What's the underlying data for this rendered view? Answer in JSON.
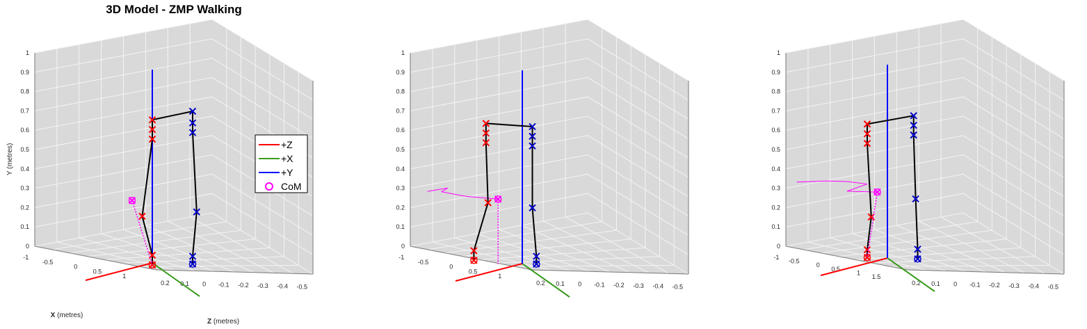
{
  "title": "3D Model - ZMP Walking",
  "axis_labels": {
    "y": "Y (metres)",
    "x_bold": "X",
    "x_rest": " (metres)",
    "z_bold": "Z",
    "z_rest": " (metres)"
  },
  "colors": {
    "pane": "#d9d9d9",
    "grid": "#f4f4f4",
    "edge": "#777777",
    "plusZ": "#ff0000",
    "plusX": "#3a9a1c",
    "plusY": "#0000ff",
    "right_leg": "#ff0000",
    "left_leg": "#0000cc",
    "com": "#ff00ff",
    "link": "#000000"
  },
  "legend": {
    "items": [
      {
        "label": "+Z",
        "kind": "line",
        "color": "#ff0000"
      },
      {
        "label": "+X",
        "kind": "line",
        "color": "#3a9a1c"
      },
      {
        "label": "+Y",
        "kind": "line",
        "color": "#0000ff"
      },
      {
        "label": "CoM",
        "kind": "circle",
        "color": "#ff00ff"
      }
    ]
  },
  "chart_data": [
    {
      "type": "scatter",
      "view": "3d",
      "panel": 1,
      "ylim": [
        0,
        1
      ],
      "z_ticks": [
        "0.2",
        "0.1",
        "0",
        "-0.1",
        "-0.2",
        "-0.3",
        "-0.4",
        "-0.5"
      ],
      "x_ticks": [
        "-1",
        "-0.5",
        "0",
        "0.5",
        "1"
      ],
      "y_ticks": [
        "0",
        "0.1",
        "0.2",
        "0.3",
        "0.4",
        "0.5",
        "0.6",
        "0.7",
        "0.8",
        "0.9",
        "1"
      ],
      "right_leg": [
        [
          0,
          0.74
        ],
        [
          0,
          0.69
        ],
        [
          0,
          0.64
        ],
        [
          0.05,
          0.24
        ],
        [
          0,
          0.04
        ],
        [
          0,
          -0.01
        ]
      ],
      "left_leg": [
        [
          -0.2,
          0.79
        ],
        [
          -0.2,
          0.73
        ],
        [
          -0.2,
          0.68
        ],
        [
          -0.22,
          0.27
        ],
        [
          -0.2,
          0.04
        ],
        [
          -0.2,
          0.0
        ]
      ],
      "com": [
        0.1,
        0.32
      ],
      "com_trail": [],
      "legend": true
    },
    {
      "type": "scatter",
      "view": "3d",
      "panel": 2,
      "ylim": [
        0,
        1
      ],
      "z_ticks": [
        "0.2",
        "0.1",
        "0",
        "-0.1",
        "-0.2",
        "-0.3",
        "-0.4",
        "-0.5"
      ],
      "x_ticks": [
        "-1",
        "-0.5",
        "0",
        "0.5",
        "1"
      ],
      "y_ticks": [
        "0",
        "0.1",
        "0.2",
        "0.3",
        "0.4",
        "0.5",
        "0.6",
        "0.7",
        "0.8",
        "0.9",
        "1"
      ],
      "right_leg": [
        [
          0.18,
          0.72
        ],
        [
          0.18,
          0.67
        ],
        [
          0.18,
          0.62
        ],
        [
          0.17,
          0.31
        ],
        [
          0.24,
          0.06
        ],
        [
          0.24,
          0.01
        ]
      ],
      "left_leg": [
        [
          -0.05,
          0.71
        ],
        [
          -0.05,
          0.66
        ],
        [
          -0.05,
          0.61
        ],
        [
          -0.05,
          0.29
        ],
        [
          -0.07,
          0.04
        ],
        [
          -0.07,
          0.0
        ]
      ],
      "com": [
        0.12,
        0.33
      ],
      "com_trail": [
        [
          0.47,
          0.36
        ],
        [
          0.42,
          0.37
        ],
        [
          0.37,
          0.38
        ],
        [
          0.4,
          0.36
        ],
        [
          0.28,
          0.34
        ],
        [
          0.12,
          0.33
        ]
      ],
      "legend": false
    },
    {
      "type": "scatter",
      "view": "3d",
      "panel": 3,
      "ylim": [
        0,
        1
      ],
      "z_ticks": [
        "0.2",
        "0.1",
        "0",
        "-0.1",
        "-0.2",
        "-0.3",
        "-0.4",
        "-0.5"
      ],
      "x_ticks": [
        "-1",
        "-0.5",
        "0",
        "0.5",
        "1",
        "1.5"
      ],
      "y_ticks": [
        "0",
        "0.1",
        "0.2",
        "0.3",
        "0.4",
        "0.5",
        "0.6",
        "0.7",
        "0.8",
        "0.9",
        "1"
      ],
      "right_leg": [
        [
          0.1,
          0.69
        ],
        [
          0.1,
          0.64
        ],
        [
          0.1,
          0.59
        ],
        [
          0.08,
          0.21
        ],
        [
          0.1,
          0.04
        ],
        [
          0.1,
          0.0
        ]
      ],
      "left_leg": [
        [
          -0.13,
          0.74
        ],
        [
          -0.13,
          0.69
        ],
        [
          -0.13,
          0.64
        ],
        [
          -0.14,
          0.31
        ],
        [
          -0.15,
          0.05
        ],
        [
          -0.15,
          0.0
        ]
      ],
      "com": [
        0.05,
        0.34
      ],
      "com_trail": [
        [
          0.45,
          0.38
        ],
        [
          0.3,
          0.39
        ],
        [
          0.2,
          0.39
        ],
        [
          0.1,
          0.38
        ],
        [
          0.2,
          0.34
        ],
        [
          0.05,
          0.34
        ]
      ],
      "legend": false
    }
  ]
}
